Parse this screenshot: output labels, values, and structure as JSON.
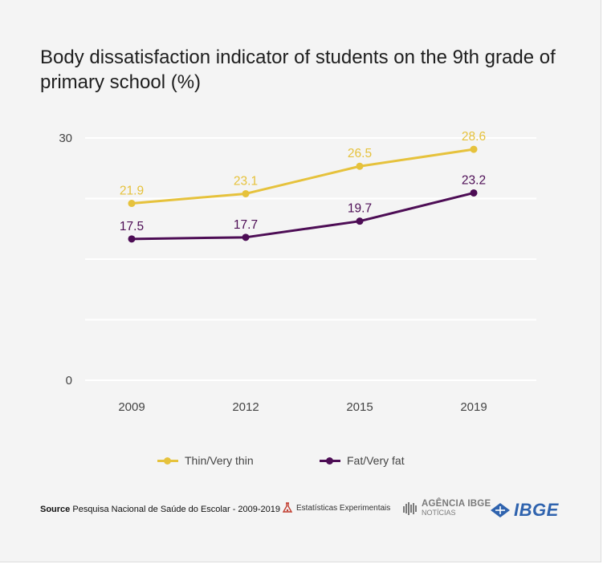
{
  "title": "Body dissatisfaction indicator of students on the 9th grade of primary school (%)",
  "chart_data": {
    "type": "line",
    "categories": [
      "2009",
      "2012",
      "2015",
      "2019"
    ],
    "series": [
      {
        "name": "Thin/Very thin",
        "values": [
          21.9,
          23.1,
          26.5,
          28.6
        ],
        "labels": [
          "21.9",
          "23.1",
          "26.5",
          "28.6"
        ],
        "color": "#e6c23c"
      },
      {
        "name": "Fat/Very fat",
        "values": [
          17.5,
          17.7,
          19.7,
          23.2
        ],
        "labels": [
          "17.5",
          "17.7",
          "19.7",
          "23.2"
        ],
        "color": "#4d0d55"
      }
    ],
    "y_ticks": [
      "0",
      "30"
    ],
    "ylim": [
      0,
      30
    ],
    "grid": true,
    "legend": "bottom"
  },
  "footer": {
    "source_label": "Source",
    "source_text": "Pesquisa Nacional de Saúde do Escolar - 2009-2019",
    "logo_experimental": "Estatísticas Experimentais",
    "logo_agencia_line1": "AGÊNCIA IBGE",
    "logo_agencia_line2": "NOTÍCIAS",
    "logo_ibge": "IBGE"
  }
}
